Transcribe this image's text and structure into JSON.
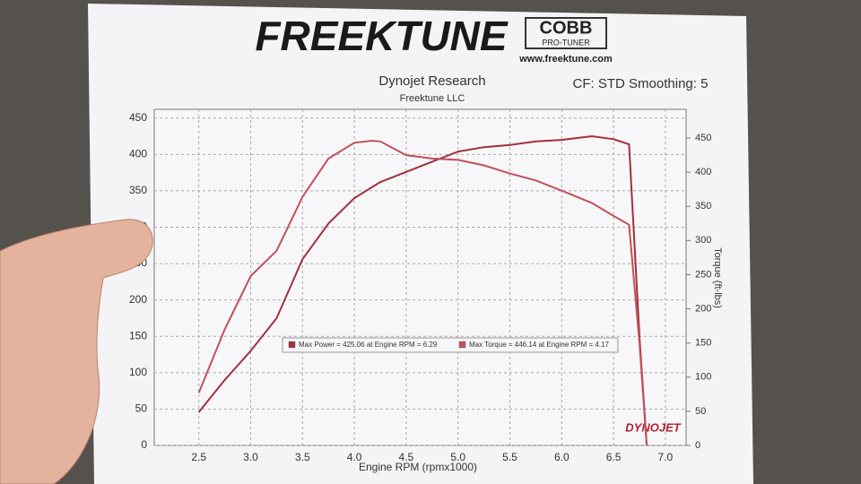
{
  "header": {
    "brand": "FREEKTUNE",
    "partner": "COBB",
    "partner_sub": "PRO-TUNER",
    "url": "www.freektune.com",
    "badge": "DYNOJET"
  },
  "chart_data": {
    "type": "line",
    "title": "Dynojet Research",
    "subtitle": "Freektune LLC",
    "annotation": "CF: STD Smoothing: 5",
    "x_label": "Engine RPM (rpmx1000)",
    "y2_label": "Torque (ft-lbs)",
    "x": [
      2.5,
      2.75,
      3.0,
      3.25,
      3.5,
      3.75,
      4.0,
      4.17,
      4.25,
      4.5,
      4.75,
      5.0,
      5.25,
      5.5,
      5.75,
      6.0,
      6.29,
      6.5,
      6.65,
      6.75,
      6.82
    ],
    "series": [
      {
        "name": "Max Power = 425.06 at Engine RPM = 6.29",
        "color": "#a1303c",
        "axis": "y",
        "values": [
          46,
          90,
          130,
          175,
          256,
          305,
          340,
          355,
          362,
          376,
          390,
          404,
          410,
          413,
          418,
          420,
          425.06,
          421,
          414,
          150,
          0
        ]
      },
      {
        "name": "Max Torque = 446.14 at Engine RPM = 4.17",
        "color": "#c2505a",
        "axis": "y2",
        "values": [
          77,
          170,
          248,
          285,
          364,
          420,
          443,
          446.14,
          445,
          425,
          420,
          418,
          410,
          398,
          388,
          373,
          355,
          336,
          323,
          150,
          0
        ]
      }
    ],
    "xlim": [
      2.07,
      7.2
    ],
    "xticks": [
      2.5,
      {
        "value": 3,
        "label": "3.0"
      },
      3.5,
      {
        "value": 4,
        "label": "4.0"
      },
      4.5,
      {
        "value": 5,
        "label": "5.0"
      },
      5.5,
      {
        "value": 6,
        "label": "6.0"
      },
      6.5,
      {
        "value": 7,
        "label": "7.0"
      }
    ],
    "ylim": [
      0,
      462
    ],
    "yticks": [
      0,
      50,
      100,
      150,
      200,
      250,
      300,
      350,
      400,
      450
    ],
    "y2lim": [
      0,
      492
    ],
    "y2ticks": [
      0,
      50,
      100,
      150,
      200,
      250,
      300,
      350,
      400,
      450
    ],
    "grid": true
  }
}
